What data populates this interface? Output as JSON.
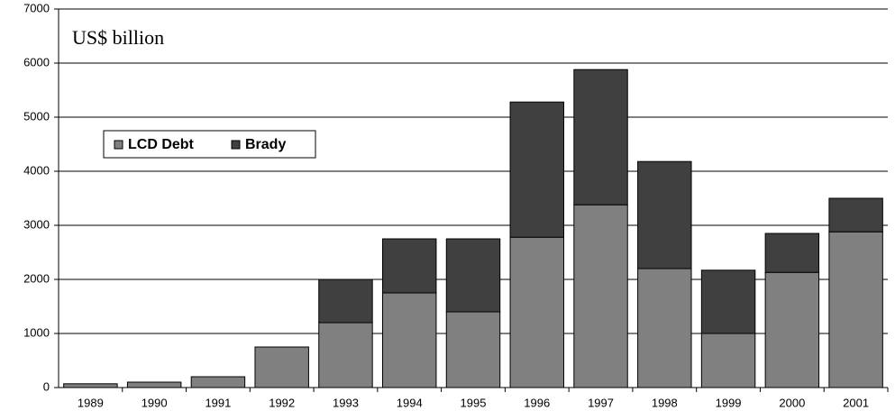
{
  "chart_data": {
    "type": "stacked_bar",
    "ylabel": "US$ billion",
    "categories": [
      "1989",
      "1990",
      "1991",
      "1992",
      "1993",
      "1994",
      "1995",
      "1996",
      "1997",
      "1998",
      "1999",
      "2000",
      "2001"
    ],
    "series": [
      {
        "name": "LCD Debt",
        "color": "#808080",
        "values": [
          70,
          100,
          200,
          750,
          1200,
          1750,
          1400,
          2780,
          3380,
          2200,
          1000,
          2130,
          2880
        ]
      },
      {
        "name": "Brady",
        "color": "#404040",
        "values": [
          0,
          0,
          0,
          0,
          800,
          1000,
          1350,
          2500,
          2500,
          1980,
          1170,
          720,
          620
        ]
      }
    ],
    "ylim": [
      0,
      7000
    ],
    "yticks": [
      0,
      1000,
      2000,
      3000,
      4000,
      5000,
      6000,
      7000
    ],
    "grid": true,
    "legend": "upper left"
  }
}
